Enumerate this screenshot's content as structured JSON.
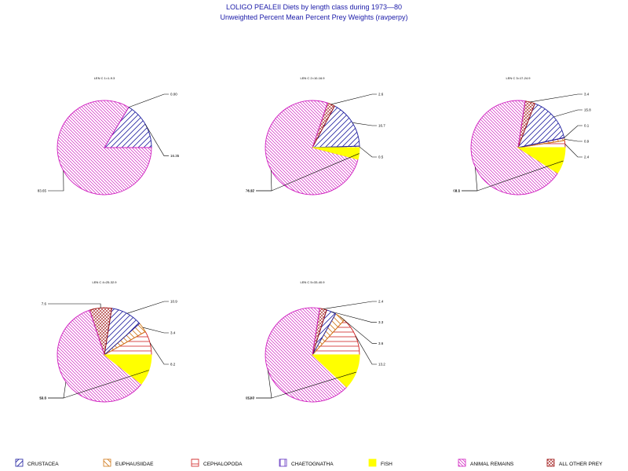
{
  "chart_data": {
    "type": "pie",
    "title": "LOLIGO PEALEII Diets by length class during 1973—80",
    "subtitle": "Unweighted Percent Mean Percent Prey  Weights (ravperpy)",
    "categories": [
      "CRUSTACEA",
      "EUPHAUSIIDAE",
      "CEPHALOPODA",
      "CHAETOGNATHA",
      "FISH",
      "ANIMAL REMAINS",
      "ALL OTHER PREY"
    ],
    "category_colors": {
      "CRUSTACEA": "#2020a0",
      "EUPHAUSIIDAE": "#d07818",
      "CEPHALOPODA": "#d02020",
      "CHAETOGNATHA": "#6030c0",
      "FISH": "#ffff00",
      "ANIMAL REMAINS": "#d020c0",
      "ALL OTHER PREY": "#a01818"
    },
    "pies": [
      {
        "header": "LEN C 1=1-9.3",
        "slices": [
          {
            "category": "CRUSTACEA",
            "value": 16.35,
            "label": "16.35"
          },
          {
            "category": "ALL OTHER PREY",
            "value": 0.0,
            "label": "0.00"
          },
          {
            "category": "ANIMAL REMAINS",
            "value": 83.65,
            "label": "83.65"
          }
        ]
      },
      {
        "header": "LEN C 2=10-16.9",
        "slices": [
          {
            "category": "CHAETOGNATHA",
            "value": 0.5,
            "label": "0.5"
          },
          {
            "category": "CRUSTACEA",
            "value": 16.7,
            "label": "16.7"
          },
          {
            "category": "ALL OTHER PREY",
            "value": 2.6,
            "label": "2.6"
          },
          {
            "category": "ANIMAL REMAINS",
            "value": 76.17,
            "label": "76.17"
          },
          {
            "category": "FISH",
            "value": 4.02,
            "label": "4.02"
          }
        ]
      },
      {
        "header": "LEN C 3=17-24.9",
        "slices": [
          {
            "category": "CEPHALOPODA",
            "value": 2.4,
            "label": "2.4"
          },
          {
            "category": "EUPHAUSIIDAE",
            "value": 0.9,
            "label": "0.9"
          },
          {
            "category": "CHAETOGNATHA",
            "value": 0.1,
            "label": "0.1"
          },
          {
            "category": "CRUSTACEA",
            "value": 15.8,
            "label": "15.8"
          },
          {
            "category": "ALL OTHER PREY",
            "value": 3.4,
            "label": "3.4"
          },
          {
            "category": "ANIMAL REMAINS",
            "value": 68.3,
            "label": "68.3"
          },
          {
            "category": "FISH",
            "value": 9.1,
            "label": "9.1"
          }
        ]
      },
      {
        "header": "LEN C 4=25-32.9",
        "slices": [
          {
            "category": "CEPHALOPODA",
            "value": 8.2,
            "label": "8.2"
          },
          {
            "category": "EUPHAUSIIDAE",
            "value": 3.4,
            "label": "3.4"
          },
          {
            "category": "CRUSTACEA",
            "value": 10.9,
            "label": "10.9"
          },
          {
            "category": "ALL OTHER PREY",
            "value": 7.6,
            "label": "7.6"
          },
          {
            "category": "ANIMAL REMAINS",
            "value": 59.3,
            "label": "59.3"
          },
          {
            "category": "FISH",
            "value": 10.6,
            "label": "10.6"
          }
        ]
      },
      {
        "header": "LEN C 5=33-40.9",
        "slices": [
          {
            "category": "CEPHALOPODA",
            "value": 13.2,
            "label": "13.2"
          },
          {
            "category": "EUPHAUSIIDAE",
            "value": 3.6,
            "label": "3.6"
          },
          {
            "category": "CRUSTACEA",
            "value": 3.3,
            "label": "3.3"
          },
          {
            "category": "ALL OTHER PREY",
            "value": 2.4,
            "label": "2.4"
          },
          {
            "category": "ANIMAL REMAINS",
            "value": 65.47,
            "label": "65.47"
          },
          {
            "category": "FISH",
            "value": 12.0,
            "label": "12.0"
          }
        ]
      }
    ],
    "legend": [
      {
        "label": "CRUSTACEA",
        "pattern": "hatch-fwd"
      },
      {
        "label": "EUPHAUSIIDAE",
        "pattern": "hatch-back"
      },
      {
        "label": "CEPHALOPODA",
        "pattern": "hatch-horiz"
      },
      {
        "label": "CHAETOGNATHA",
        "pattern": "hatch-vert"
      },
      {
        "label": "FISH",
        "pattern": "solid"
      },
      {
        "label": "ANIMAL REMAINS",
        "pattern": "hatch-back-dense"
      },
      {
        "label": "ALL OTHER PREY",
        "pattern": "hatch-cross"
      }
    ],
    "legend_placement": "bottom",
    "grid": false
  }
}
